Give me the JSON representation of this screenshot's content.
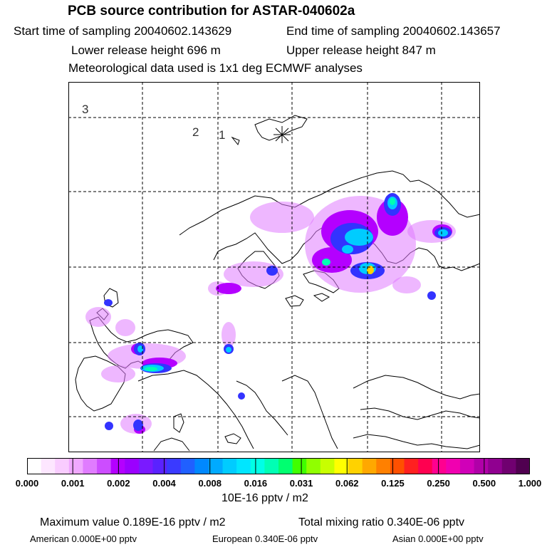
{
  "header": {
    "title": "PCB source contribution for ASTAR-040602a",
    "start_time": "Start time of sampling 20040602.143629",
    "end_time": "End time of sampling 20040602.143657",
    "lower_height": "Lower release height  696 m",
    "upper_height": "Upper release height  847 m",
    "met_data": "Meteorological data used is 1x1 deg ECMWF analyses"
  },
  "map": {
    "trajectory_markers": [
      "3",
      "2",
      "1"
    ],
    "plume_colors": [
      "#f5c8ff",
      "#e07cff",
      "#b400ff",
      "#3333ff",
      "#00b4ff",
      "#00ffe0",
      "#80ff00",
      "#ffd200"
    ]
  },
  "colorbar": {
    "tick_labels": [
      "0.000",
      "0.001",
      "0.002",
      "0.004",
      "0.008",
      "0.016",
      "0.031",
      "0.062",
      "0.125",
      "0.250",
      "0.500",
      "1.000"
    ],
    "colors": [
      "#ffffff",
      "#fde6ff",
      "#f9ccff",
      "#f0a8ff",
      "#e07cff",
      "#cc4dff",
      "#b400ff",
      "#9b00ff",
      "#7a1aff",
      "#5a22ff",
      "#3a3aff",
      "#2060ff",
      "#0088ff",
      "#00aaff",
      "#00ccff",
      "#00e6ff",
      "#00ffe6",
      "#00ffb4",
      "#00ff70",
      "#40ff00",
      "#90ff00",
      "#c8ff00",
      "#ffff00",
      "#ffd200",
      "#ffa800",
      "#ff8000",
      "#ff5000",
      "#ff2020",
      "#ff0050",
      "#ff0090",
      "#f000b0",
      "#d000b8",
      "#b000a8",
      "#900090",
      "#700070",
      "#500050"
    ],
    "units": "10E-16 pptv / m2"
  },
  "footer": {
    "maximum": "Maximum value  0.189E-16 pptv / m2",
    "total": "Total mixing ratio  0.340E-06 pptv",
    "american": "American  0.000E+00 pptv",
    "european": "European  0.340E-06 pptv",
    "asian": "Asian  0.000E+00 pptv"
  }
}
